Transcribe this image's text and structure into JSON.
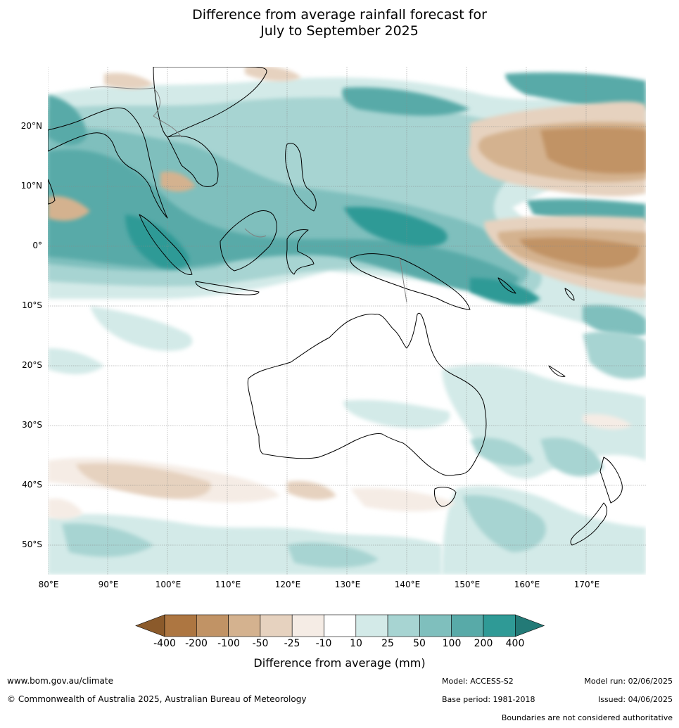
{
  "title": {
    "line1": "Difference from average rainfall forecast for",
    "line2": "July to September 2025"
  },
  "map": {
    "lon_range": [
      80,
      180
    ],
    "lat_range": [
      -55,
      30
    ],
    "lat_labels": [
      "20°N",
      "10°N",
      "0°",
      "10°S",
      "20°S",
      "30°S",
      "40°S",
      "50°S"
    ],
    "lon_labels": [
      "80°E",
      "90°E",
      "100°E",
      "110°E",
      "120°E",
      "130°E",
      "140°E",
      "150°E",
      "160°E",
      "170°E"
    ],
    "gridlines": true
  },
  "legend": {
    "title": "Difference from average (mm)",
    "ticks": [
      "-400",
      "-200",
      "-100",
      "-50",
      "-25",
      "-10",
      "10",
      "25",
      "50",
      "100",
      "200",
      "400"
    ],
    "colors": [
      "#8b5a2b",
      "#ad7641",
      "#c19365",
      "#d4b28f",
      "#e6d2bf",
      "#f5ece5",
      "#ffffff",
      "#d3eae8",
      "#a7d4d2",
      "#7fbfbd",
      "#58aaa8",
      "#2f9a96",
      "#237a77"
    ]
  },
  "footer": {
    "website": "www.bom.gov.au/climate",
    "copyright": "© Commonwealth of Australia 2025, Australian Bureau of Meteorology",
    "model": "Model: ACCESS-S2",
    "base_period": "Base period: 1981-2018",
    "model_run": "Model run: 02/06/2025",
    "issued": "Issued: 04/06/2025",
    "disclaimer": "Boundaries are not considered authoritative"
  }
}
